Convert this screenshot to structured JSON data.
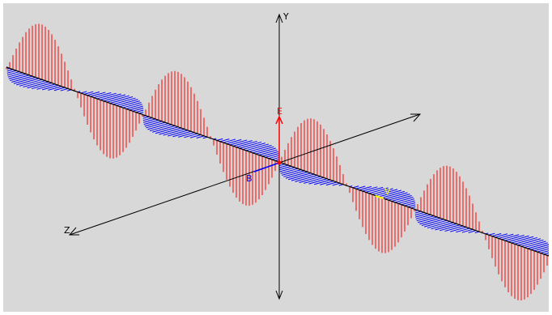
{
  "axes": {
    "y_label": "Y",
    "z_label": "Z",
    "e_label": "E",
    "b_label": "B",
    "v_label": "V"
  },
  "colors": {
    "background": "#d8d8d8",
    "axis": "#000000",
    "e_field": "#ff0000",
    "b_field": "#0000ff",
    "velocity": "#ffff00"
  }
}
